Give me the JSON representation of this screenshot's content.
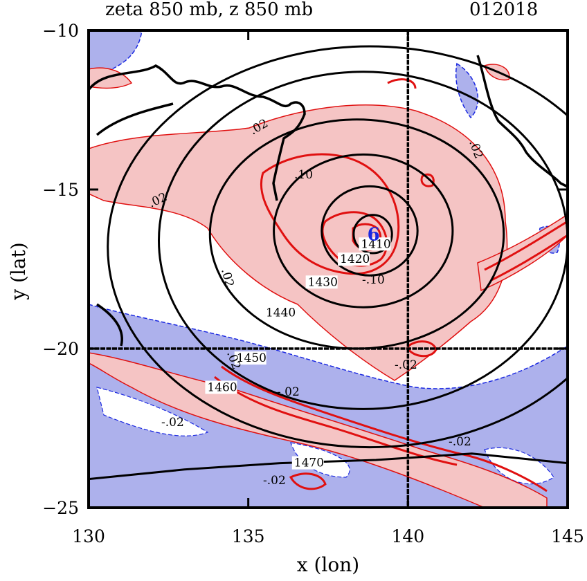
{
  "chart_data": {
    "type": "contour",
    "title": "zeta 850 mb, z 850 mb",
    "date_label": "012018",
    "xlabel": "x (lon)",
    "ylabel": "y (lat)",
    "xlim": [
      130,
      145
    ],
    "ylim": [
      -25,
      -10
    ],
    "xticks": [
      130,
      135,
      140,
      145
    ],
    "yticks": [
      -10,
      -15,
      -20,
      -25
    ],
    "xtick_labels": [
      "130",
      "135",
      "140",
      "145"
    ],
    "ytick_labels": [
      "−10",
      "−15",
      "−20",
      "−25"
    ],
    "reference_lines": {
      "lon": 140,
      "lat": -20
    },
    "center": {
      "lon": 138.9,
      "lat": -16.4,
      "label": "6"
    },
    "height_contours": [
      {
        "level": 1410,
        "label": "1410",
        "center": [
          138.9,
          -16.4
        ],
        "rx": 0.6,
        "ry": 0.6
      },
      {
        "level": 1420,
        "label": "1420",
        "center": [
          138.8,
          -16.3
        ],
        "rx": 1.5,
        "ry": 1.4
      },
      {
        "level": 1430,
        "label": "1430",
        "center": [
          138.6,
          -16.3
        ],
        "rx": 2.8,
        "ry": 2.4
      },
      {
        "level": 1440,
        "label": "1440",
        "center": [
          138.4,
          -16.4
        ],
        "rx": 4.6,
        "ry": 3.6
      },
      {
        "level": 1450,
        "label": "1450",
        "center": [
          138.6,
          -16.6
        ],
        "rx": 6.4,
        "ry": 5.3
      },
      {
        "level": 1460,
        "label": "1460",
        "center": [
          138.8,
          -16.8
        ],
        "rx": 8.2,
        "ry": 6.3
      },
      {
        "level": 1470,
        "label": "1470",
        "lon": [
          130,
          133,
          136,
          139,
          142,
          145
        ],
        "lat": [
          -24.1,
          -23.8,
          -23.6,
          -23.5,
          -23.3,
          -23.6
        ]
      }
    ],
    "zeta_contour_labels": [
      ".02",
      "-.02",
      ".10",
      "-.10"
    ],
    "shading": {
      "positive": "#f5c4c4",
      "negative": "#adb1ec"
    },
    "colors": {
      "positive_contour": "#e01010",
      "negative_contour": "#1a28e0",
      "height_contour": "#000000",
      "center_label": "#1a28e0"
    }
  }
}
